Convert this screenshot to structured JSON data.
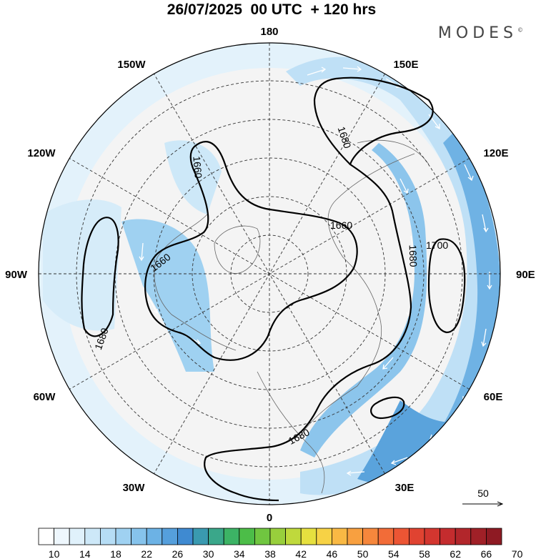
{
  "header": {
    "title": "26/07/2025  00 UTC  + 120 hrs",
    "logo": "MODES",
    "logo_mark": "©"
  },
  "map": {
    "longitude_labels": [
      "180",
      "150E",
      "120E",
      "90E",
      "60E",
      "30E",
      "0",
      "30W",
      "60W",
      "90W",
      "120W",
      "150W"
    ],
    "contours": [
      {
        "value": 1660,
        "label": "1660"
      },
      {
        "value": 1680,
        "label": "1680"
      },
      {
        "value": 1700,
        "label": "1700"
      }
    ],
    "contour_labels": [
      "1660",
      "1680",
      "1660",
      "1680",
      "1660",
      "1680",
      "1680",
      "1700"
    ],
    "wind_reference": {
      "label": "50"
    }
  },
  "colorbar": {
    "tick_labels": [
      "10",
      "14",
      "18",
      "22",
      "26",
      "30",
      "34",
      "38",
      "42",
      "46",
      "50",
      "54",
      "58",
      "62",
      "66",
      "70"
    ],
    "colors": [
      "#ffffff",
      "#eef7fd",
      "#e0f1fb",
      "#cde8f8",
      "#b6ddf5",
      "#9fd1f1",
      "#86c3ec",
      "#6cb2e5",
      "#559fdc",
      "#3f8ad1",
      "#3a9ab0",
      "#3aa78a",
      "#3cb365",
      "#4cbd48",
      "#70c640",
      "#98cf3c",
      "#bfd93c",
      "#e6e03f",
      "#f7d245",
      "#f9b944",
      "#f8a040",
      "#f6873c",
      "#f26c38",
      "#ec5534",
      "#e04331",
      "#d3362f",
      "#c42c2e",
      "#b2262b",
      "#a02027",
      "#8e1a23"
    ]
  }
}
